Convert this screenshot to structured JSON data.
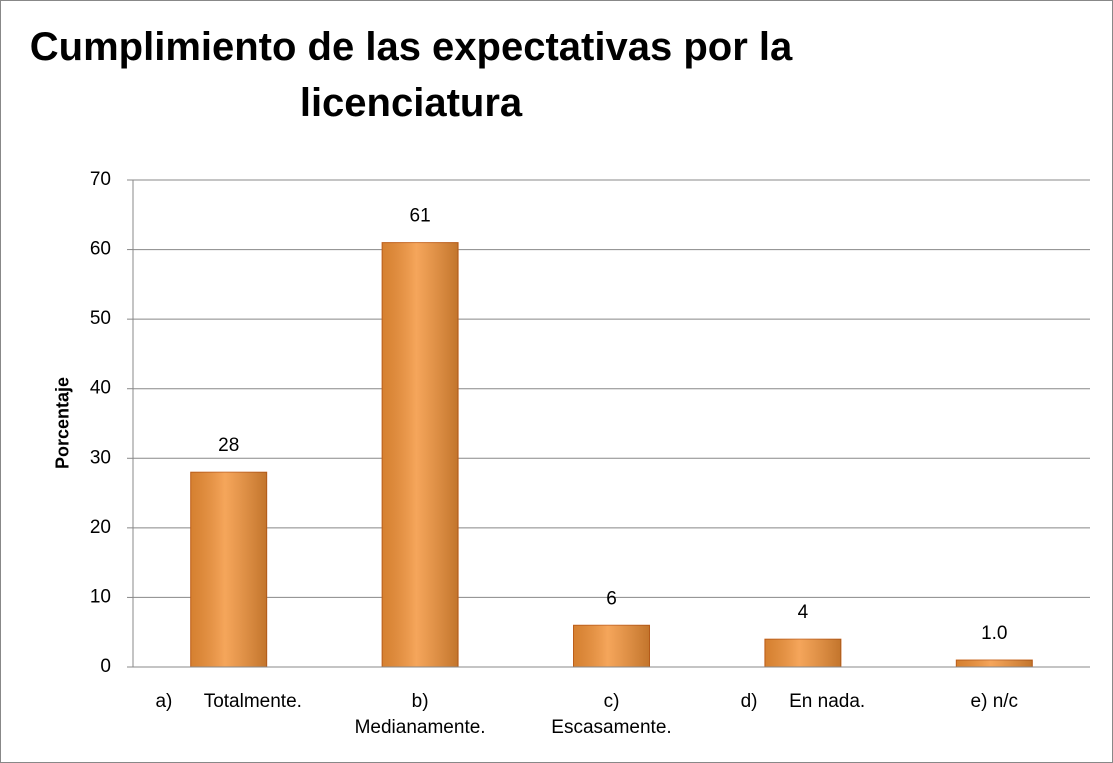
{
  "chart_data": {
    "type": "bar",
    "title": "Cumplimiento de las expectativas por la\nlicenciatura",
    "y_label": "Porcentaje",
    "categories": [
      "a)      Totalmente.",
      "b)\nMedianamente.",
      "c)\nEscasamente.",
      "d)      En nada.",
      "e) n/c"
    ],
    "values": [
      28,
      61,
      6,
      4,
      1.0
    ],
    "value_labels": [
      "28",
      "61",
      "6",
      "4",
      "1.0"
    ],
    "color": "#f39237",
    "ylim": [
      0,
      70
    ],
    "yticks": [
      0,
      10,
      20,
      30,
      40,
      50,
      60,
      70
    ],
    "grid": true
  }
}
